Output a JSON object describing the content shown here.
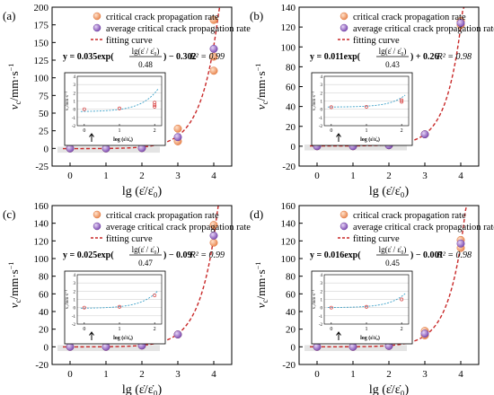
{
  "colors": {
    "critical": "#f0a070",
    "critical_edge": "#e07840",
    "average": "#9a68c8",
    "average_edge": "#6a3c9c",
    "fit": "#c82828",
    "inset_fit": "#3aa0c8",
    "inset_mark": "#d84040",
    "shade": "#e4e4e4"
  },
  "icons": [
    "up-arrow-icon"
  ],
  "chart_data": [
    {
      "type": "scatter",
      "panel_label": "(a)",
      "ylabel_main": "v",
      "ylabel_sub": "c",
      "ylabel_unit": "/mm·s",
      "ylabel_exp": "−1",
      "xlabel": "lg (ε̇/ε̇₀)",
      "xlim": [
        -0.5,
        4.5
      ],
      "ylim": [
        -25,
        200
      ],
      "xticks": [
        0,
        1,
        2,
        3,
        4
      ],
      "yticks": [
        -25,
        0,
        25,
        50,
        75,
        100,
        125,
        150,
        175,
        200
      ],
      "legend": {
        "critical": "critical crack propagation rate",
        "average": "average critical crack propagation rate",
        "fit": "fitting curve"
      },
      "equation": {
        "prefix": "y = 0.035exp(",
        "numerator": "lg(ε̇ / ε̇₀)",
        "denominator": "0.48",
        "suffix": ") − 0.302",
        "r2": "R² = 0.99"
      },
      "fit": {
        "a": 0.035,
        "b": 0.48,
        "c": -0.302
      },
      "critical_points": [
        {
          "x": 0,
          "y": 0
        },
        {
          "x": 1,
          "y": 0
        },
        {
          "x": 2,
          "y": 0.5
        },
        {
          "x": 3,
          "y": 28
        },
        {
          "x": 3,
          "y": 10
        },
        {
          "x": 4,
          "y": 182
        },
        {
          "x": 4,
          "y": 130
        },
        {
          "x": 4,
          "y": 110
        }
      ],
      "average_points": [
        {
          "x": 0,
          "y": 0
        },
        {
          "x": 1,
          "y": 0
        },
        {
          "x": 2,
          "y": 0.5
        },
        {
          "x": 3,
          "y": 16
        },
        {
          "x": 4,
          "y": 141
        }
      ],
      "inset": {
        "ylabel": "v꜀/mm·s⁻¹",
        "xlabel": "log (ε̇/ε̇₀)",
        "xticks": [
          0,
          1,
          2
        ],
        "xlim": [
          -0.2,
          2.2
        ],
        "yticks": [
          -2,
          -1,
          0,
          1,
          2,
          3,
          4
        ],
        "ylim": [
          -2,
          4
        ],
        "fit": {
          "a": 0.035,
          "b": 0.48,
          "c": -0.302
        },
        "marks": [
          {
            "x": 0,
            "y": 0
          },
          {
            "x": 1,
            "y": 0.1
          },
          {
            "x": 2,
            "y": 0.5
          },
          {
            "x": 2,
            "y": 0.8
          },
          {
            "x": 2,
            "y": 0.3
          }
        ]
      }
    },
    {
      "type": "scatter",
      "panel_label": "(b)",
      "ylabel_main": "v",
      "ylabel_sub": "c",
      "ylabel_unit": "/mm·s",
      "ylabel_exp": "−1",
      "xlabel": "lg (ε̇/ε̇₀)",
      "xlim": [
        -0.5,
        4.5
      ],
      "ylim": [
        -20,
        140
      ],
      "xticks": [
        0,
        1,
        2,
        3,
        4
      ],
      "yticks": [
        -20,
        0,
        20,
        40,
        60,
        80,
        100,
        120,
        140
      ],
      "legend": {
        "critical": "critical crack propagation rate",
        "average": "average critical crack propagation rate",
        "fit": "fitting curve"
      },
      "equation": {
        "prefix": "y = 0.011exp(",
        "numerator": "lg(ε̇ / ε̇₀)",
        "denominator": "0.43",
        "suffix": ") + 0.26",
        "r2": "R² = 0.98"
      },
      "fit": {
        "a": 0.011,
        "b": 0.43,
        "c": 0.26
      },
      "critical_points": [
        {
          "x": 0,
          "y": 0
        },
        {
          "x": 1,
          "y": 0
        },
        {
          "x": 2,
          "y": 1
        },
        {
          "x": 3,
          "y": 12
        },
        {
          "x": 4,
          "y": 126
        },
        {
          "x": 4,
          "y": 122
        }
      ],
      "average_points": [
        {
          "x": 0,
          "y": 0
        },
        {
          "x": 1,
          "y": 0
        },
        {
          "x": 2,
          "y": 1
        },
        {
          "x": 3,
          "y": 12
        },
        {
          "x": 4,
          "y": 124
        }
      ],
      "inset": {
        "ylabel": "v꜀/mm·s⁻¹",
        "xlabel": "log (ε̇/ε̇₀)",
        "xticks": [
          0,
          1,
          2
        ],
        "xlim": [
          -0.2,
          2.2
        ],
        "yticks": [
          -2,
          -1,
          0,
          1,
          2,
          3,
          4
        ],
        "ylim": [
          -2,
          4
        ],
        "fit": {
          "a": 0.011,
          "b": 0.43,
          "c": 0.26
        },
        "marks": [
          {
            "x": 0,
            "y": 0.25
          },
          {
            "x": 1,
            "y": 0.3
          },
          {
            "x": 2,
            "y": 1.1
          },
          {
            "x": 2,
            "y": 0.9
          }
        ]
      }
    },
    {
      "type": "scatter",
      "panel_label": "(c)",
      "ylabel_main": "v",
      "ylabel_sub": "c",
      "ylabel_unit": "/mm·s",
      "ylabel_exp": "−1",
      "xlabel": "lg (ε̇/ε̇₀)",
      "xlim": [
        -0.5,
        4.5
      ],
      "ylim": [
        -20,
        160
      ],
      "xticks": [
        0,
        1,
        2,
        3,
        4
      ],
      "yticks": [
        -20,
        0,
        20,
        40,
        60,
        80,
        100,
        120,
        140,
        160
      ],
      "legend": {
        "critical": "critical crack propagation rate",
        "average": "average critical crack propagation rate",
        "fit": "fitting curve"
      },
      "equation": {
        "prefix": "y = 0.025exp(",
        "numerator": "lg(ε̇ / ε̇₀)",
        "denominator": "0.47",
        "suffix": ") − 0.09",
        "r2": "R² = 0.99"
      },
      "fit": {
        "a": 0.025,
        "b": 0.47,
        "c": -0.09
      },
      "critical_points": [
        {
          "x": 0,
          "y": 0
        },
        {
          "x": 1,
          "y": 0
        },
        {
          "x": 2,
          "y": 1.5
        },
        {
          "x": 3,
          "y": 14
        },
        {
          "x": 4,
          "y": 138
        },
        {
          "x": 4,
          "y": 118
        }
      ],
      "average_points": [
        {
          "x": 0,
          "y": 0
        },
        {
          "x": 1,
          "y": 0
        },
        {
          "x": 2,
          "y": 1.5
        },
        {
          "x": 3,
          "y": 14
        },
        {
          "x": 4,
          "y": 126
        }
      ],
      "inset": {
        "ylabel": "v꜀/mm·s⁻¹",
        "xlabel": "log (ε̇/ε̇₀)",
        "xticks": [
          0,
          1,
          2
        ],
        "xlim": [
          -0.2,
          2.2
        ],
        "yticks": [
          -2,
          -1,
          0,
          1,
          2,
          3,
          4
        ],
        "ylim": [
          -2,
          4
        ],
        "fit": {
          "a": 0.025,
          "b": 0.47,
          "c": -0.09
        },
        "marks": [
          {
            "x": 0,
            "y": 0
          },
          {
            "x": 1,
            "y": 0.1
          },
          {
            "x": 2,
            "y": 1.5
          }
        ]
      }
    },
    {
      "type": "scatter",
      "panel_label": "(d)",
      "ylabel_main": "v",
      "ylabel_sub": "c",
      "ylabel_unit": "/mm·s",
      "ylabel_exp": "−1",
      "xlabel": "lg (ε̇/ε̇₀)",
      "xlim": [
        -0.5,
        4.5
      ],
      "ylim": [
        -20,
        160
      ],
      "xticks": [
        0,
        1,
        2,
        3,
        4
      ],
      "yticks": [
        -20,
        0,
        20,
        40,
        60,
        80,
        100,
        120,
        140,
        160
      ],
      "legend": {
        "critical": "critical crack propagation rate",
        "average": "average critical crack propagation rate",
        "fit": "fitting curve"
      },
      "equation": {
        "prefix": "y = 0.016exp(",
        "numerator": "lg(ε̇ / ε̇₀)",
        "denominator": "0.45",
        "suffix": ") − 0.001",
        "r2": "R² = 0.98"
      },
      "fit": {
        "a": 0.016,
        "b": 0.45,
        "c": -0.001
      },
      "critical_points": [
        {
          "x": 0,
          "y": 0
        },
        {
          "x": 1,
          "y": 0
        },
        {
          "x": 2,
          "y": 1
        },
        {
          "x": 3,
          "y": 18
        },
        {
          "x": 3,
          "y": 13
        },
        {
          "x": 4,
          "y": 121
        },
        {
          "x": 4,
          "y": 112
        }
      ],
      "average_points": [
        {
          "x": 0,
          "y": 0
        },
        {
          "x": 1,
          "y": 0
        },
        {
          "x": 2,
          "y": 1
        },
        {
          "x": 3,
          "y": 15
        },
        {
          "x": 4,
          "y": 117
        }
      ],
      "inset": {
        "ylabel": "v꜀/mm·s⁻¹",
        "xlabel": "log (ε̇/ε̇₀)",
        "xticks": [
          0,
          1,
          2
        ],
        "xlim": [
          -0.2,
          2.2
        ],
        "yticks": [
          -2,
          -1,
          0,
          1,
          2,
          3,
          4
        ],
        "ylim": [
          -2,
          4
        ],
        "fit": {
          "a": 0.016,
          "b": 0.45,
          "c": -0.001
        },
        "marks": [
          {
            "x": 0,
            "y": 0
          },
          {
            "x": 1,
            "y": 0.1
          },
          {
            "x": 2,
            "y": 1
          }
        ]
      }
    }
  ]
}
